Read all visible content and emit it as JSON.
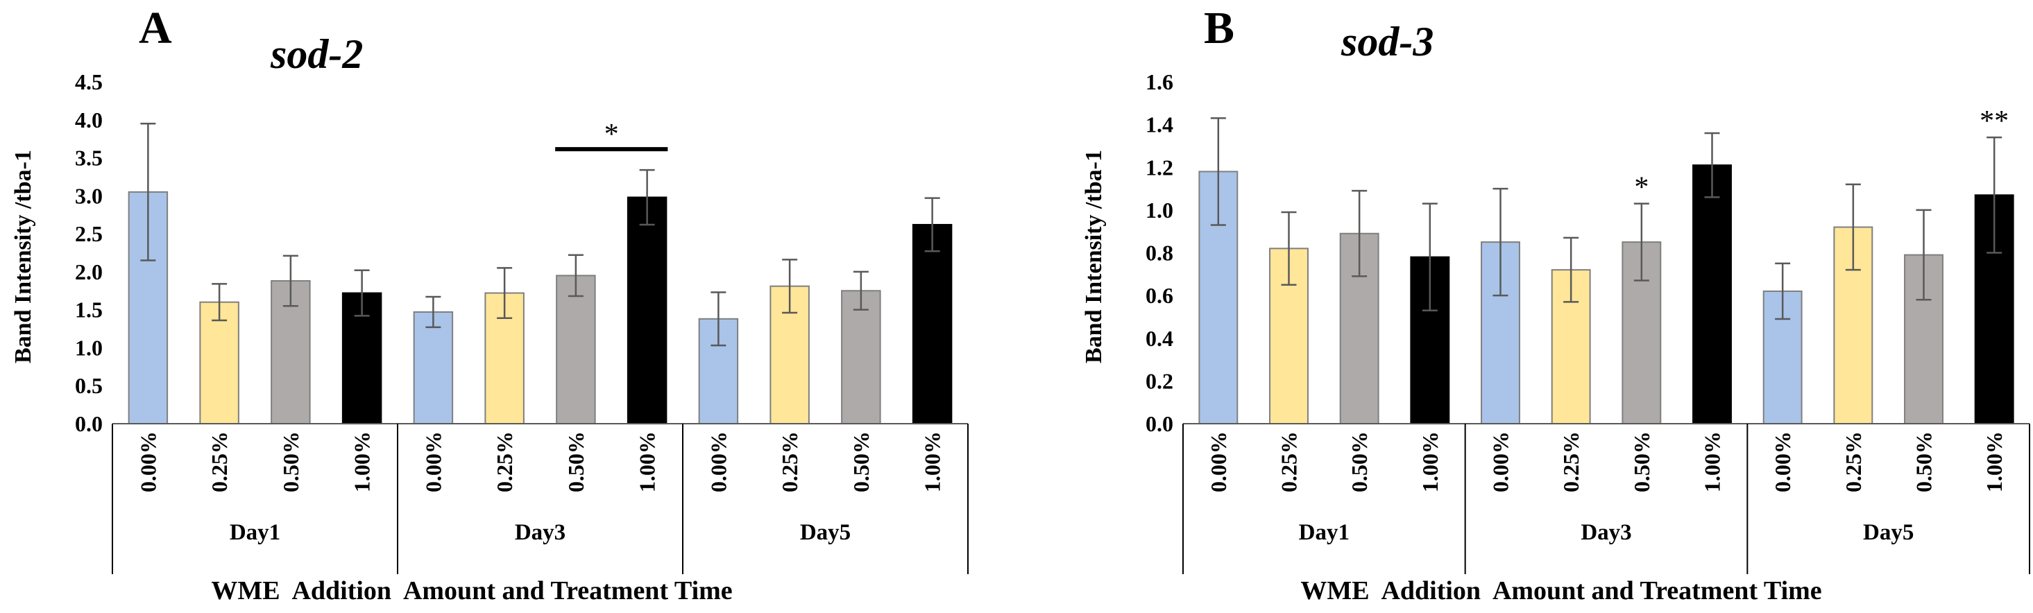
{
  "chart_data": [
    {
      "type": "bar",
      "panel": "A",
      "title": "sod-2",
      "ylabel": "Band Intensity /tba-1",
      "xlabel": "WME  Addition  Amount and Treatment Time",
      "ylim": [
        0,
        4.5
      ],
      "yticks": [
        "0.0",
        "0.5",
        "1.0",
        "1.5",
        "2.0",
        "2.5",
        "3.0",
        "3.5",
        "4.0",
        "4.5"
      ],
      "categories": [
        "0.00%",
        "0.25%",
        "0.50%",
        "1.00%",
        "0.00%",
        "0.25%",
        "0.50%",
        "1.00%",
        "0.00%",
        "0.25%",
        "0.50%",
        "1.00%"
      ],
      "groups": [
        "Day1",
        "Day3",
        "Day5"
      ],
      "values": [
        3.05,
        1.6,
        1.88,
        1.72,
        1.47,
        1.72,
        1.95,
        2.98,
        1.38,
        1.81,
        1.75,
        2.62
      ],
      "errors": [
        0.9,
        0.24,
        0.33,
        0.3,
        0.2,
        0.33,
        0.27,
        0.36,
        0.35,
        0.35,
        0.25,
        0.35
      ],
      "bar_colors": [
        "#a9c4e8",
        "#ffe699",
        "#aeaaaa",
        "#000000"
      ],
      "significance": [
        {
          "text": "*",
          "bar_index": 7,
          "style": "bracket",
          "span_from": 6
        }
      ]
    },
    {
      "type": "bar",
      "panel": "B",
      "title": "sod-3",
      "ylabel": "Band Intensity /tba-1",
      "xlabel": "WME  Addition  Amount and Treatment Time",
      "ylim": [
        0,
        1.6
      ],
      "yticks": [
        "0.0",
        "0.2",
        "0.4",
        "0.6",
        "0.8",
        "1.0",
        "1.2",
        "1.4",
        "1.6"
      ],
      "categories": [
        "0.00%",
        "0.25%",
        "0.50%",
        "1.00%",
        "0.00%",
        "0.25%",
        "0.50%",
        "1.00%",
        "0.00%",
        "0.25%",
        "0.50%",
        "1.00%"
      ],
      "groups": [
        "Day1",
        "Day3",
        "Day5"
      ],
      "values": [
        1.18,
        0.82,
        0.89,
        0.78,
        0.85,
        0.72,
        0.85,
        1.21,
        0.62,
        0.92,
        0.79,
        1.07
      ],
      "errors": [
        0.25,
        0.17,
        0.2,
        0.25,
        0.25,
        0.15,
        0.18,
        0.15,
        0.13,
        0.2,
        0.21,
        0.27
      ],
      "bar_colors": [
        "#a9c4e8",
        "#ffe699",
        "#aeaaaa",
        "#000000"
      ],
      "significance": [
        {
          "text": "*",
          "bar_index": 6,
          "style": "star"
        },
        {
          "text": "**",
          "bar_index": 11,
          "style": "star"
        }
      ]
    }
  ]
}
